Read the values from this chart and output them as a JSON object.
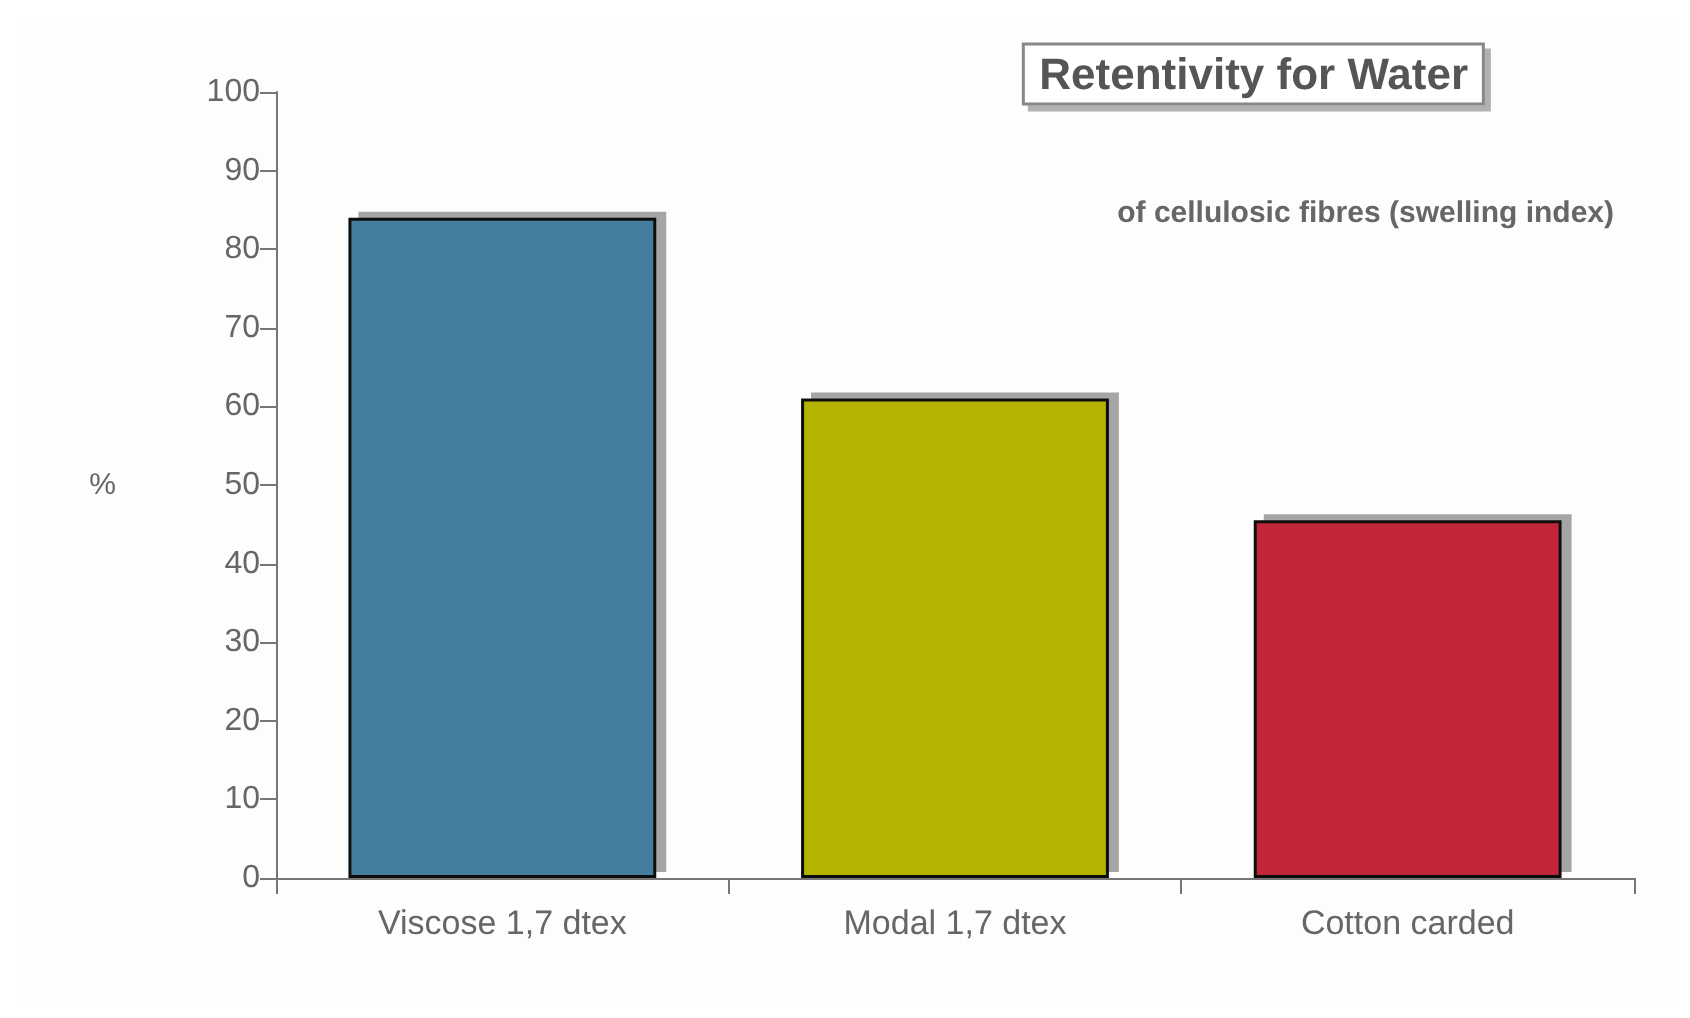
{
  "chart_data": {
    "type": "bar",
    "title": "Retentivity for Water",
    "subtitle": "of cellulosic fibres (swelling index)",
    "ylabel": "%",
    "categories": [
      "Viscose 1,7 dtex",
      "Modal 1,7 dtex",
      "Cotton carded"
    ],
    "values": [
      84,
      61,
      45.5
    ],
    "colors": [
      "#457e9c",
      "#b4b400",
      "#c12737"
    ],
    "ylim": [
      0,
      100
    ],
    "yticks": [
      0,
      10,
      20,
      30,
      40,
      50,
      60,
      70,
      80,
      90,
      100
    ],
    "grid": false
  }
}
